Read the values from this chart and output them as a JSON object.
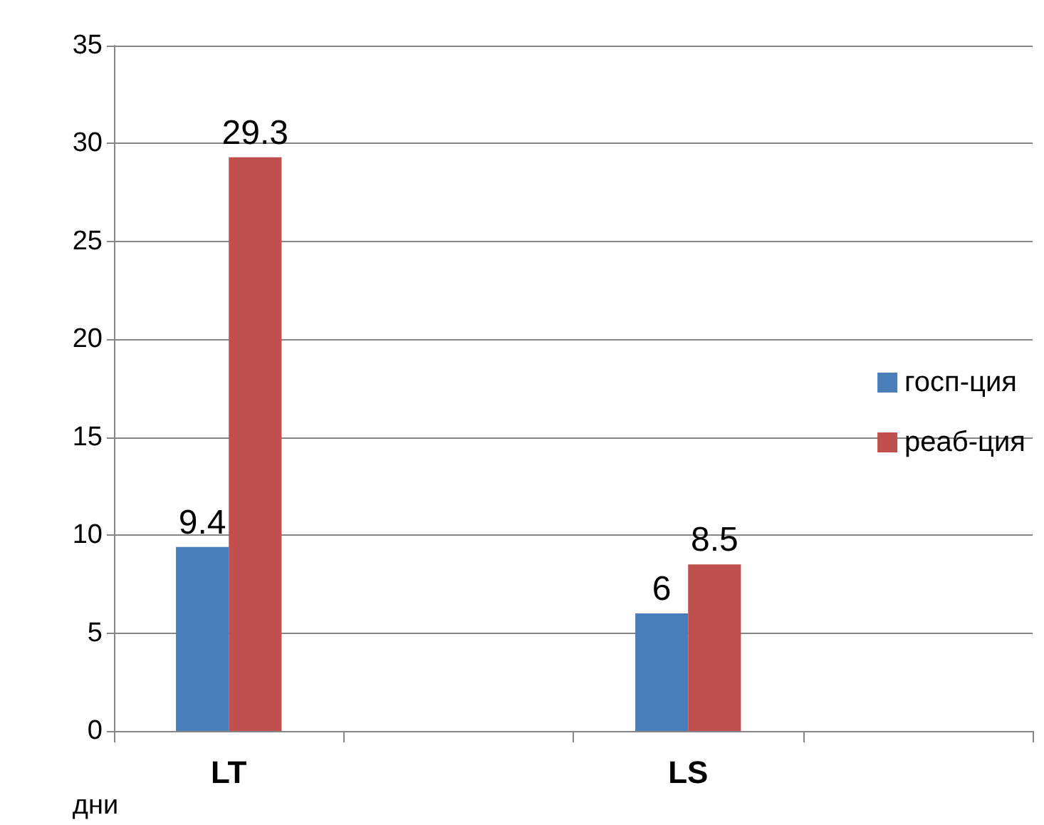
{
  "chart_data": {
    "type": "bar",
    "ylabel": "дни",
    "categories": [
      "LT",
      null,
      "LS",
      null
    ],
    "series": [
      {
        "name": "госп-ция",
        "color": "#4a7ebb",
        "values": [
          9.4,
          null,
          6,
          null
        ]
      },
      {
        "name": "реаб-ция",
        "color": "#c0504d",
        "values": [
          29.3,
          null,
          8.5,
          null
        ]
      }
    ],
    "ylim": [
      0,
      35
    ],
    "yticks": [
      0,
      5,
      10,
      15,
      20,
      25,
      30,
      35
    ],
    "grid": "y",
    "legend": "right",
    "data_labels": true
  }
}
